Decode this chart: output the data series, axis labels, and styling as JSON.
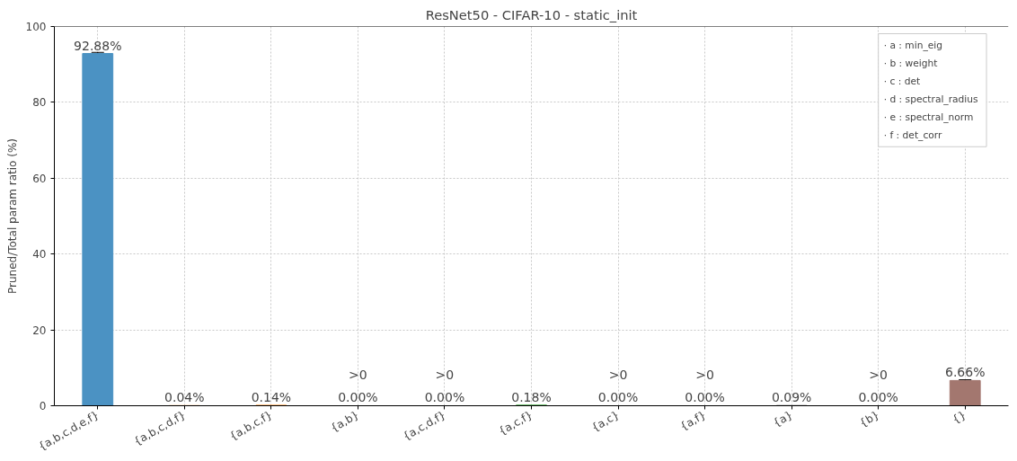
{
  "chart_data": {
    "type": "bar",
    "title": "ResNet50 - CIFAR-10 - static_init",
    "ylabel": "Pruned/Total param ratio (%)",
    "categories": [
      "{a,b,c,d,e,f}",
      "{a,b,c,d,f}",
      "{a,b,c,f}",
      "{a,b}",
      "{a,c,d,f}",
      "{a,c,f}",
      "{a,c}",
      "{a,f}",
      "{a}",
      "{b}",
      "{}"
    ],
    "values": [
      92.88,
      0.04,
      0.14,
      0.0,
      0.0,
      0.18,
      0.0,
      0.0,
      0.09,
      0.0,
      6.66
    ],
    "errors": [
      0.3,
      null,
      null,
      null,
      null,
      null,
      null,
      null,
      null,
      null,
      0.2
    ],
    "colors": [
      "#4b92c3",
      "#ff9932",
      "#ff9932",
      "#51b151",
      "#dc5051",
      "#51b151",
      "#a985ca",
      "#e59cd0",
      "#999999",
      "#cbcc4c",
      "#a3776f"
    ],
    "value_labels": [
      "92.88%",
      "0.04%",
      "0.14%",
      ">0\n0.00%",
      ">0\n0.00%",
      "0.18%",
      ">0\n0.00%",
      ">0\n0.00%",
      "0.09%",
      ">0\n0.00%",
      "6.66%"
    ],
    "ylim": [
      0,
      100
    ],
    "yticks": [
      0,
      20,
      40,
      60,
      80,
      100
    ],
    "grid": true,
    "annotations": [
      "·  a : min_eig",
      "·  b : weight",
      "·  c : det",
      "·  d : spectral_radius",
      "·  e : spectral_norm",
      "·  f : det_corr"
    ]
  }
}
